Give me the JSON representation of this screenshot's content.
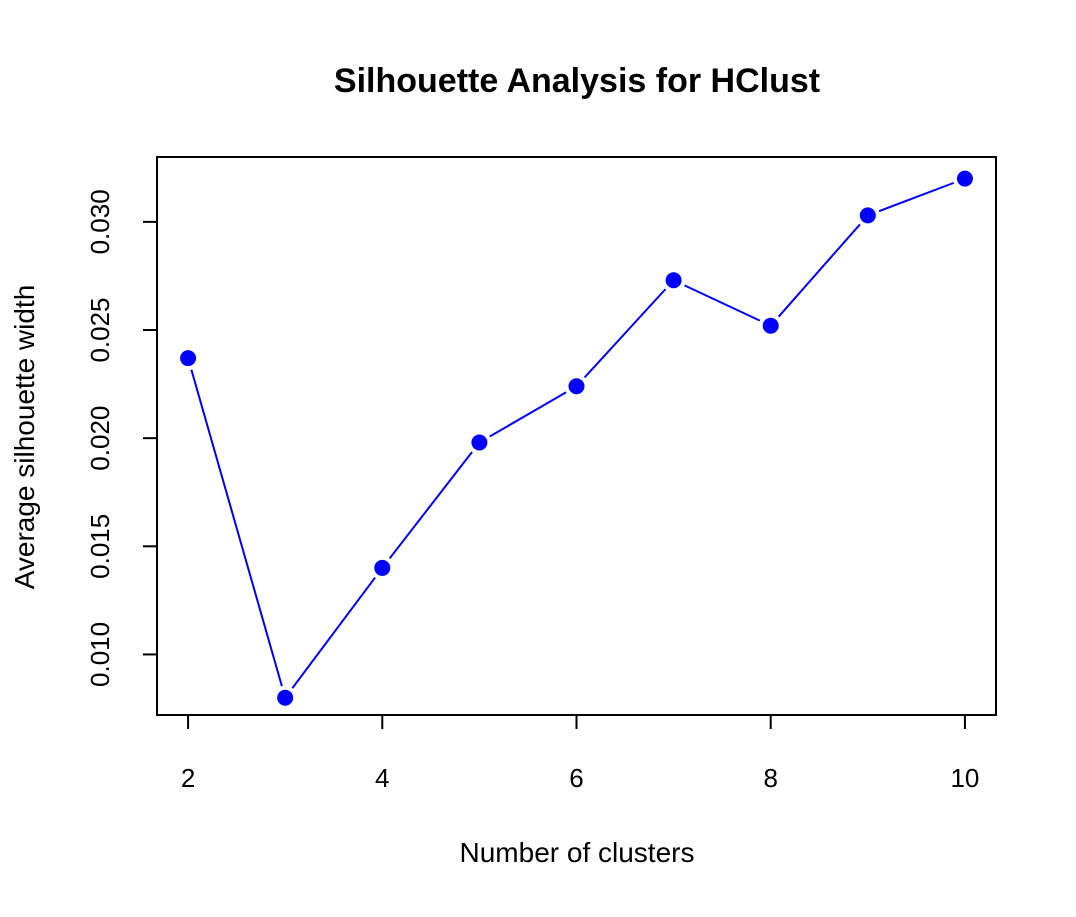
{
  "chart_data": {
    "type": "line",
    "title": "Silhouette Analysis for HClust",
    "xlabel": "Number of clusters",
    "ylabel": "Average silhouette width",
    "x": [
      2,
      3,
      4,
      5,
      6,
      7,
      8,
      9,
      10
    ],
    "series": [
      {
        "values": [
          0.0237,
          0.008,
          0.014,
          0.0198,
          0.0224,
          0.0273,
          0.0252,
          0.0303,
          0.032
        ]
      }
    ],
    "xlim": [
      1.68,
      10.32
    ],
    "ylim": [
      0.0072,
      0.033
    ],
    "xticks": [
      "2",
      "4",
      "6",
      "8",
      "10"
    ],
    "yticks": [
      "0.010",
      "0.015",
      "0.020",
      "0.025",
      "0.030"
    ],
    "xtick_values": [
      2,
      4,
      6,
      8,
      10
    ],
    "ytick_values": [
      0.01,
      0.015,
      0.02,
      0.025,
      0.03
    ],
    "grid": false,
    "point_style": "filled-circle",
    "colors": {
      "series": "#0000ff",
      "axis": "#000000",
      "background": "#ffffff"
    }
  }
}
